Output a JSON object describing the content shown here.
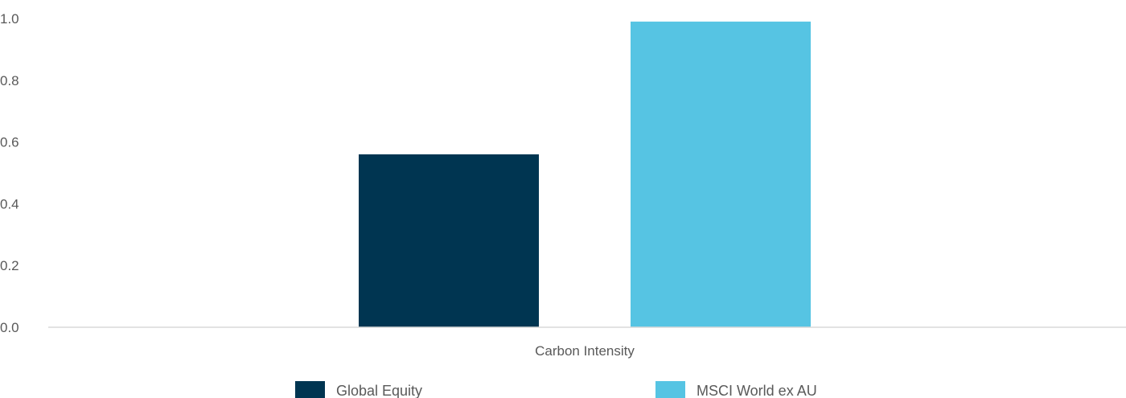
{
  "chart_data": {
    "type": "bar",
    "categories": [
      "Carbon Intensity"
    ],
    "series": [
      {
        "name": "Global Equity",
        "values": [
          0.56
        ],
        "color": "#003551"
      },
      {
        "name": "MSCI World ex AU",
        "values": [
          0.99
        ],
        "color": "#56C4E3"
      }
    ],
    "yticks": [
      "0.0",
      "0.2",
      "0.4",
      "0.6",
      "0.8",
      "1.0"
    ],
    "ylim": [
      0,
      1.0
    ],
    "grid": false,
    "legend_position": "bottom",
    "axis_color": "#D9D9D9"
  }
}
